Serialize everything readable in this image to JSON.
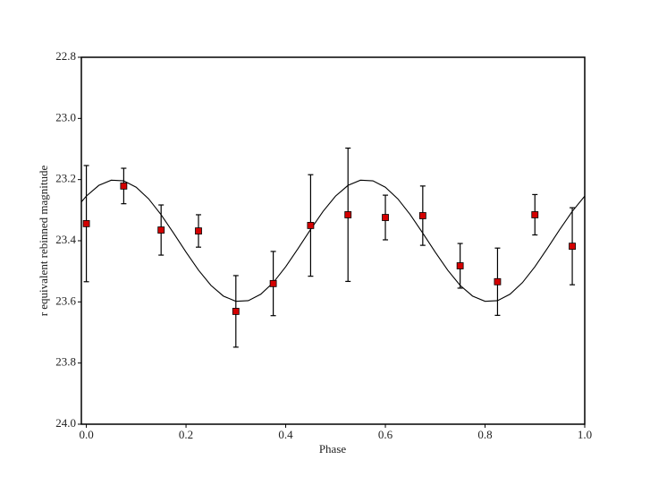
{
  "chart_data": {
    "type": "scatter",
    "xlabel": "Phase",
    "ylabel": "r equivalent rebinned magnitude",
    "xlim": [
      -0.01,
      1.0
    ],
    "ylim": [
      24.0,
      22.8
    ],
    "xticks": [
      {
        "value": 0,
        "label": "0.0"
      },
      0.2,
      0.4,
      0.6,
      0.8,
      {
        "value": 1,
        "label": "1.0"
      }
    ],
    "yticks": [
      {
        "value": 24,
        "label": "24.0"
      },
      23.8,
      23.6,
      23.4,
      23.2,
      {
        "value": 23,
        "label": "23.0"
      },
      22.8
    ],
    "series": [
      {
        "type": "line",
        "color": "#000000",
        "x": [
          -0.01,
          0,
          0.025,
          0.05,
          0.075,
          0.1,
          0.125,
          0.15,
          0.175,
          0.2,
          0.225,
          0.25,
          0.275,
          0.3,
          0.325,
          0.35,
          0.375,
          0.4,
          0.425,
          0.45,
          0.475,
          0.5,
          0.525,
          0.55,
          0.575,
          0.6,
          0.625,
          0.65,
          0.675,
          0.7,
          0.725,
          0.75,
          0.775,
          0.8,
          0.825,
          0.85,
          0.875,
          0.9,
          0.925,
          0.95,
          0.975,
          1.0
        ],
        "values": [
          23.273,
          23.254,
          23.219,
          23.202,
          23.204,
          23.225,
          23.263,
          23.315,
          23.375,
          23.437,
          23.496,
          23.546,
          23.581,
          23.598,
          23.596,
          23.575,
          23.537,
          23.485,
          23.425,
          23.363,
          23.304,
          23.254,
          23.219,
          23.202,
          23.204,
          23.225,
          23.263,
          23.315,
          23.375,
          23.437,
          23.496,
          23.546,
          23.581,
          23.598,
          23.596,
          23.575,
          23.537,
          23.485,
          23.425,
          23.363,
          23.304,
          23.254
        ]
      },
      {
        "type": "errorbar",
        "color": "#d40000",
        "x": [
          0,
          0.075,
          0.15,
          0.225,
          0.3,
          0.375,
          0.45,
          0.525,
          0.6,
          0.675,
          0.75,
          0.825,
          0.9,
          0.975
        ],
        "values": [
          23.344,
          23.221,
          23.365,
          23.368,
          23.631,
          23.54,
          23.35,
          23.315,
          23.324,
          23.318,
          23.482,
          23.534,
          23.315,
          23.418
        ],
        "errors": [
          0.19,
          0.058,
          0.082,
          0.053,
          0.117,
          0.105,
          0.166,
          0.218,
          0.073,
          0.097,
          0.073,
          0.11,
          0.066,
          0.126
        ]
      }
    ]
  }
}
